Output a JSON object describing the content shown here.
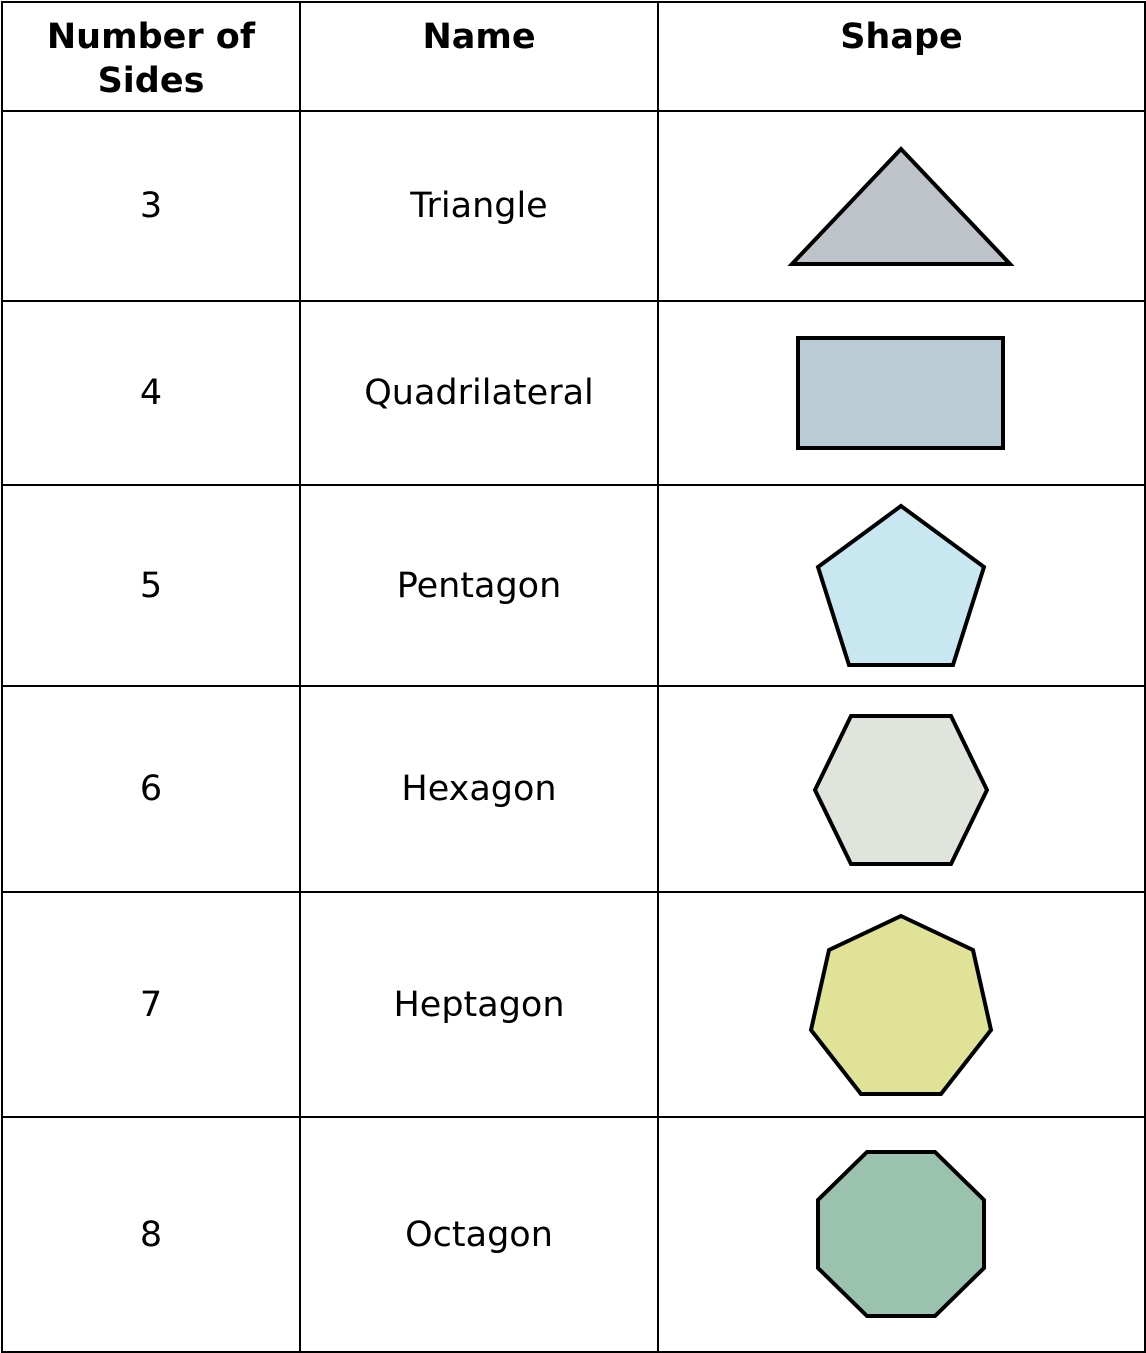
{
  "table": {
    "headers": {
      "sides": "Number of Sides",
      "name": "Name",
      "shape": "Shape"
    },
    "rows": [
      {
        "sides": "3",
        "name": "Triangle",
        "shape_icon": "triangle-icon",
        "fill": "#bec3c9"
      },
      {
        "sides": "4",
        "name": "Quadrilateral",
        "shape_icon": "rectangle-icon",
        "fill": "#b9ccd5"
      },
      {
        "sides": "5",
        "name": "Pentagon",
        "shape_icon": "pentagon-icon",
        "fill": "#c8e7f1"
      },
      {
        "sides": "6",
        "name": "Hexagon",
        "shape_icon": "hexagon-icon",
        "fill": "#dfe4dd"
      },
      {
        "sides": "7",
        "name": "Heptagon",
        "shape_icon": "heptagon-icon",
        "fill": "#dfe297"
      },
      {
        "sides": "8",
        "name": "Octagon",
        "shape_icon": "octagon-icon",
        "fill": "#9bc2ae"
      }
    ]
  }
}
